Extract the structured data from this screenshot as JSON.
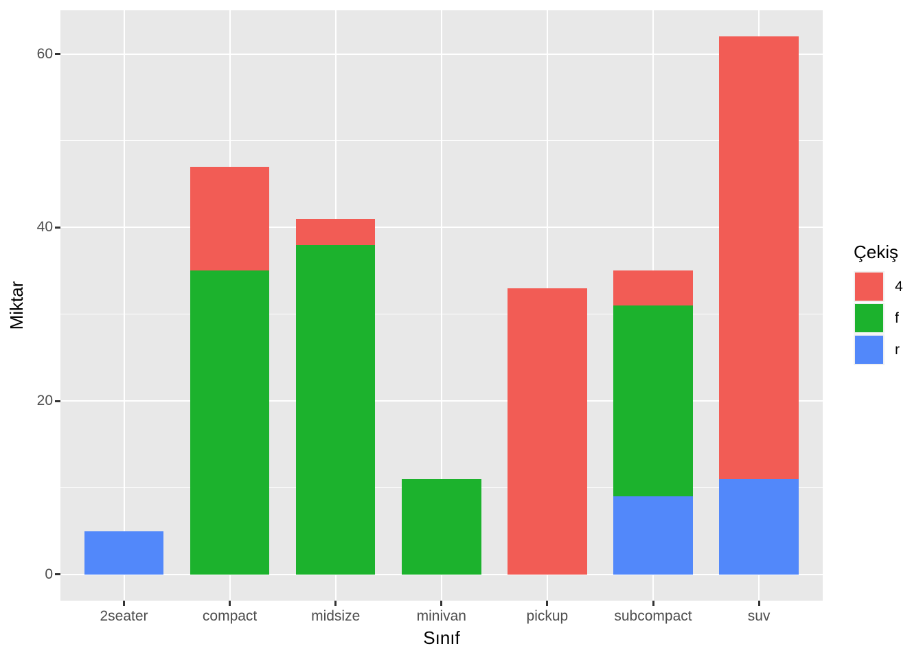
{
  "chart_data": {
    "type": "bar",
    "stacked": true,
    "title": "",
    "xlabel": "Sınıf",
    "ylabel": "Miktar",
    "categories": [
      "2seater",
      "compact",
      "midsize",
      "minivan",
      "pickup",
      "subcompact",
      "suv"
    ],
    "series": [
      {
        "name": "4",
        "color": "#F25C55",
        "values": [
          0,
          12,
          3,
          0,
          33,
          4,
          51
        ]
      },
      {
        "name": "f",
        "color": "#1CB22D",
        "values": [
          0,
          35,
          38,
          11,
          0,
          22,
          0
        ]
      },
      {
        "name": "r",
        "color": "#5288FA",
        "values": [
          5,
          0,
          0,
          0,
          0,
          9,
          11
        ]
      }
    ],
    "stack_order_bottom_to_top": [
      "r",
      "f",
      "4"
    ],
    "totals": [
      5,
      47,
      41,
      11,
      33,
      35,
      62
    ],
    "y_ticks": [
      "0",
      "20",
      "40",
      "60"
    ],
    "y_tick_values": [
      0,
      20,
      40,
      60
    ],
    "y_minor_values": [
      10,
      30,
      50
    ],
    "ylim": [
      0,
      65
    ],
    "grid": true,
    "panel_background": "#E8E8E8",
    "gridline_color": "#FFFFFF",
    "legend": {
      "title": "Çekiş",
      "position": "right",
      "entries": [
        {
          "label": "4",
          "color": "#F25C55"
        },
        {
          "label": "f",
          "color": "#1CB22D"
        },
        {
          "label": "r",
          "color": "#5288FA"
        }
      ]
    }
  }
}
